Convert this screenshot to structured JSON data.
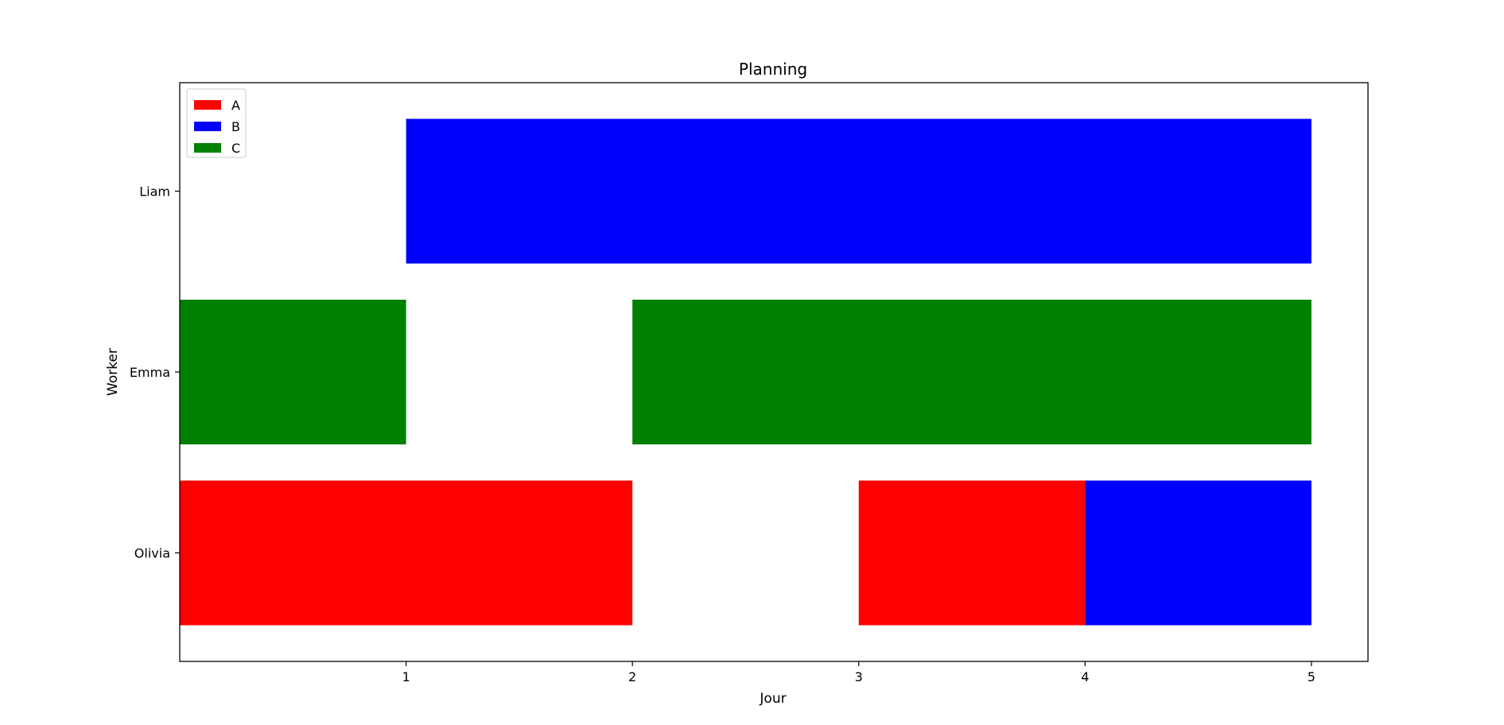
{
  "chart_data": {
    "type": "bar",
    "orientation": "horizontal-gantt",
    "title": "Planning",
    "xlabel": "Jour",
    "ylabel": "Worker",
    "xlim": [
      0,
      5.25
    ],
    "xticks": [
      1,
      2,
      3,
      4,
      5
    ],
    "workers": [
      "Olivia",
      "Emma",
      "Liam"
    ],
    "legend": {
      "placement": "top-left",
      "entries": [
        {
          "label": "A",
          "color": "#ff0000"
        },
        {
          "label": "B",
          "color": "#0000ff"
        },
        {
          "label": "C",
          "color": "#008000"
        }
      ]
    },
    "grid": false,
    "bars": [
      {
        "worker": "Olivia",
        "task": "A",
        "start": 0,
        "end": 2
      },
      {
        "worker": "Olivia",
        "task": "A",
        "start": 3,
        "end": 4
      },
      {
        "worker": "Olivia",
        "task": "B",
        "start": 4,
        "end": 5
      },
      {
        "worker": "Emma",
        "task": "C",
        "start": 0,
        "end": 1
      },
      {
        "worker": "Emma",
        "task": "C",
        "start": 2,
        "end": 5
      },
      {
        "worker": "Liam",
        "task": "B",
        "start": 1,
        "end": 5
      }
    ]
  }
}
